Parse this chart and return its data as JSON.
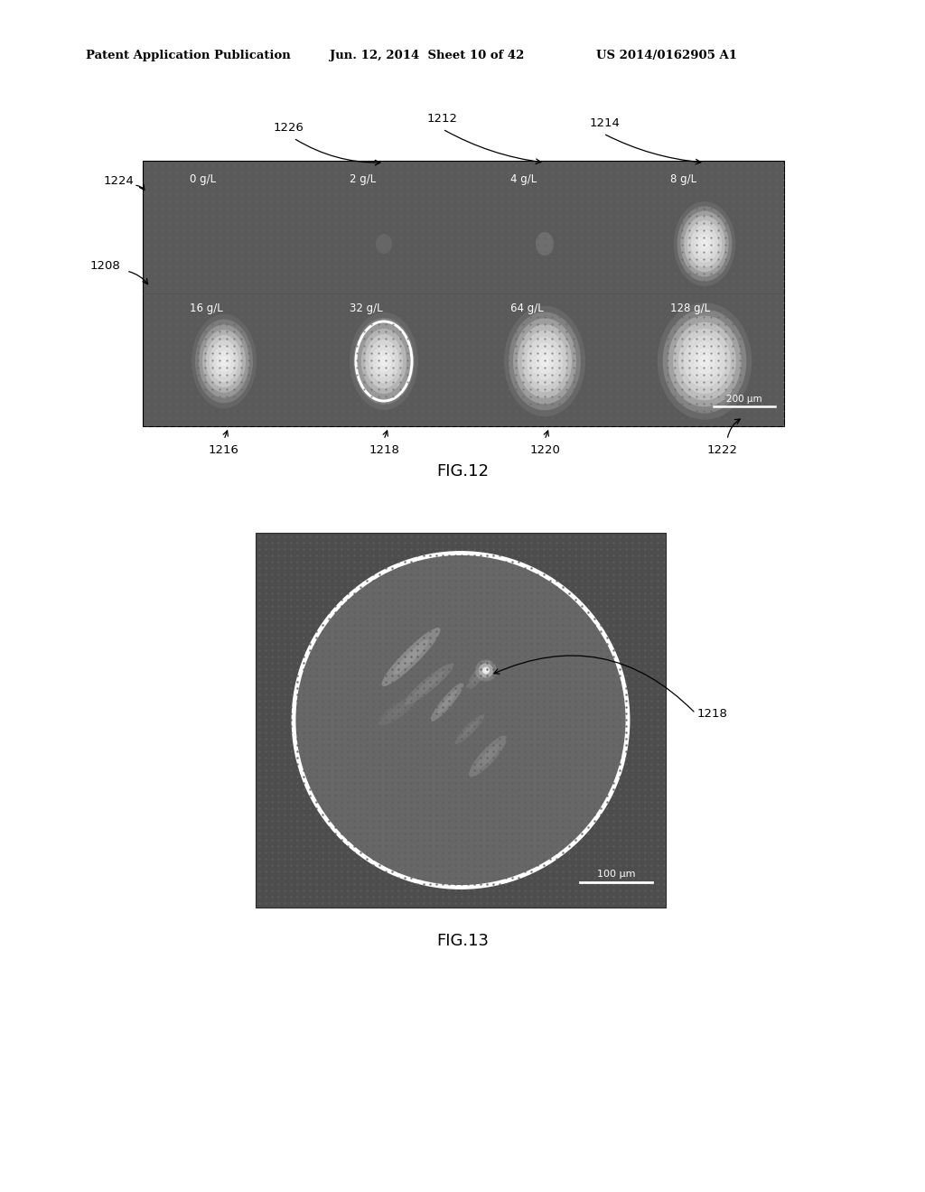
{
  "bg_color": "#ffffff",
  "header_left": "Patent Application Publication",
  "header_mid": "Jun. 12, 2014  Sheet 10 of 42",
  "header_right": "US 2014/0162905 A1",
  "fig12_label": "FIG.12",
  "fig13_label": "FIG.13",
  "fig12_top_labels": [
    "0 g/L",
    "2 g/L",
    "4 g/L",
    "8 g/L"
  ],
  "fig12_bottom_labels": [
    "16 g/L",
    "32 g/L",
    "64 g/L",
    "128 g/L"
  ],
  "scale_bar_label": "200 μm",
  "fig13_scale_bar": "100 μm"
}
